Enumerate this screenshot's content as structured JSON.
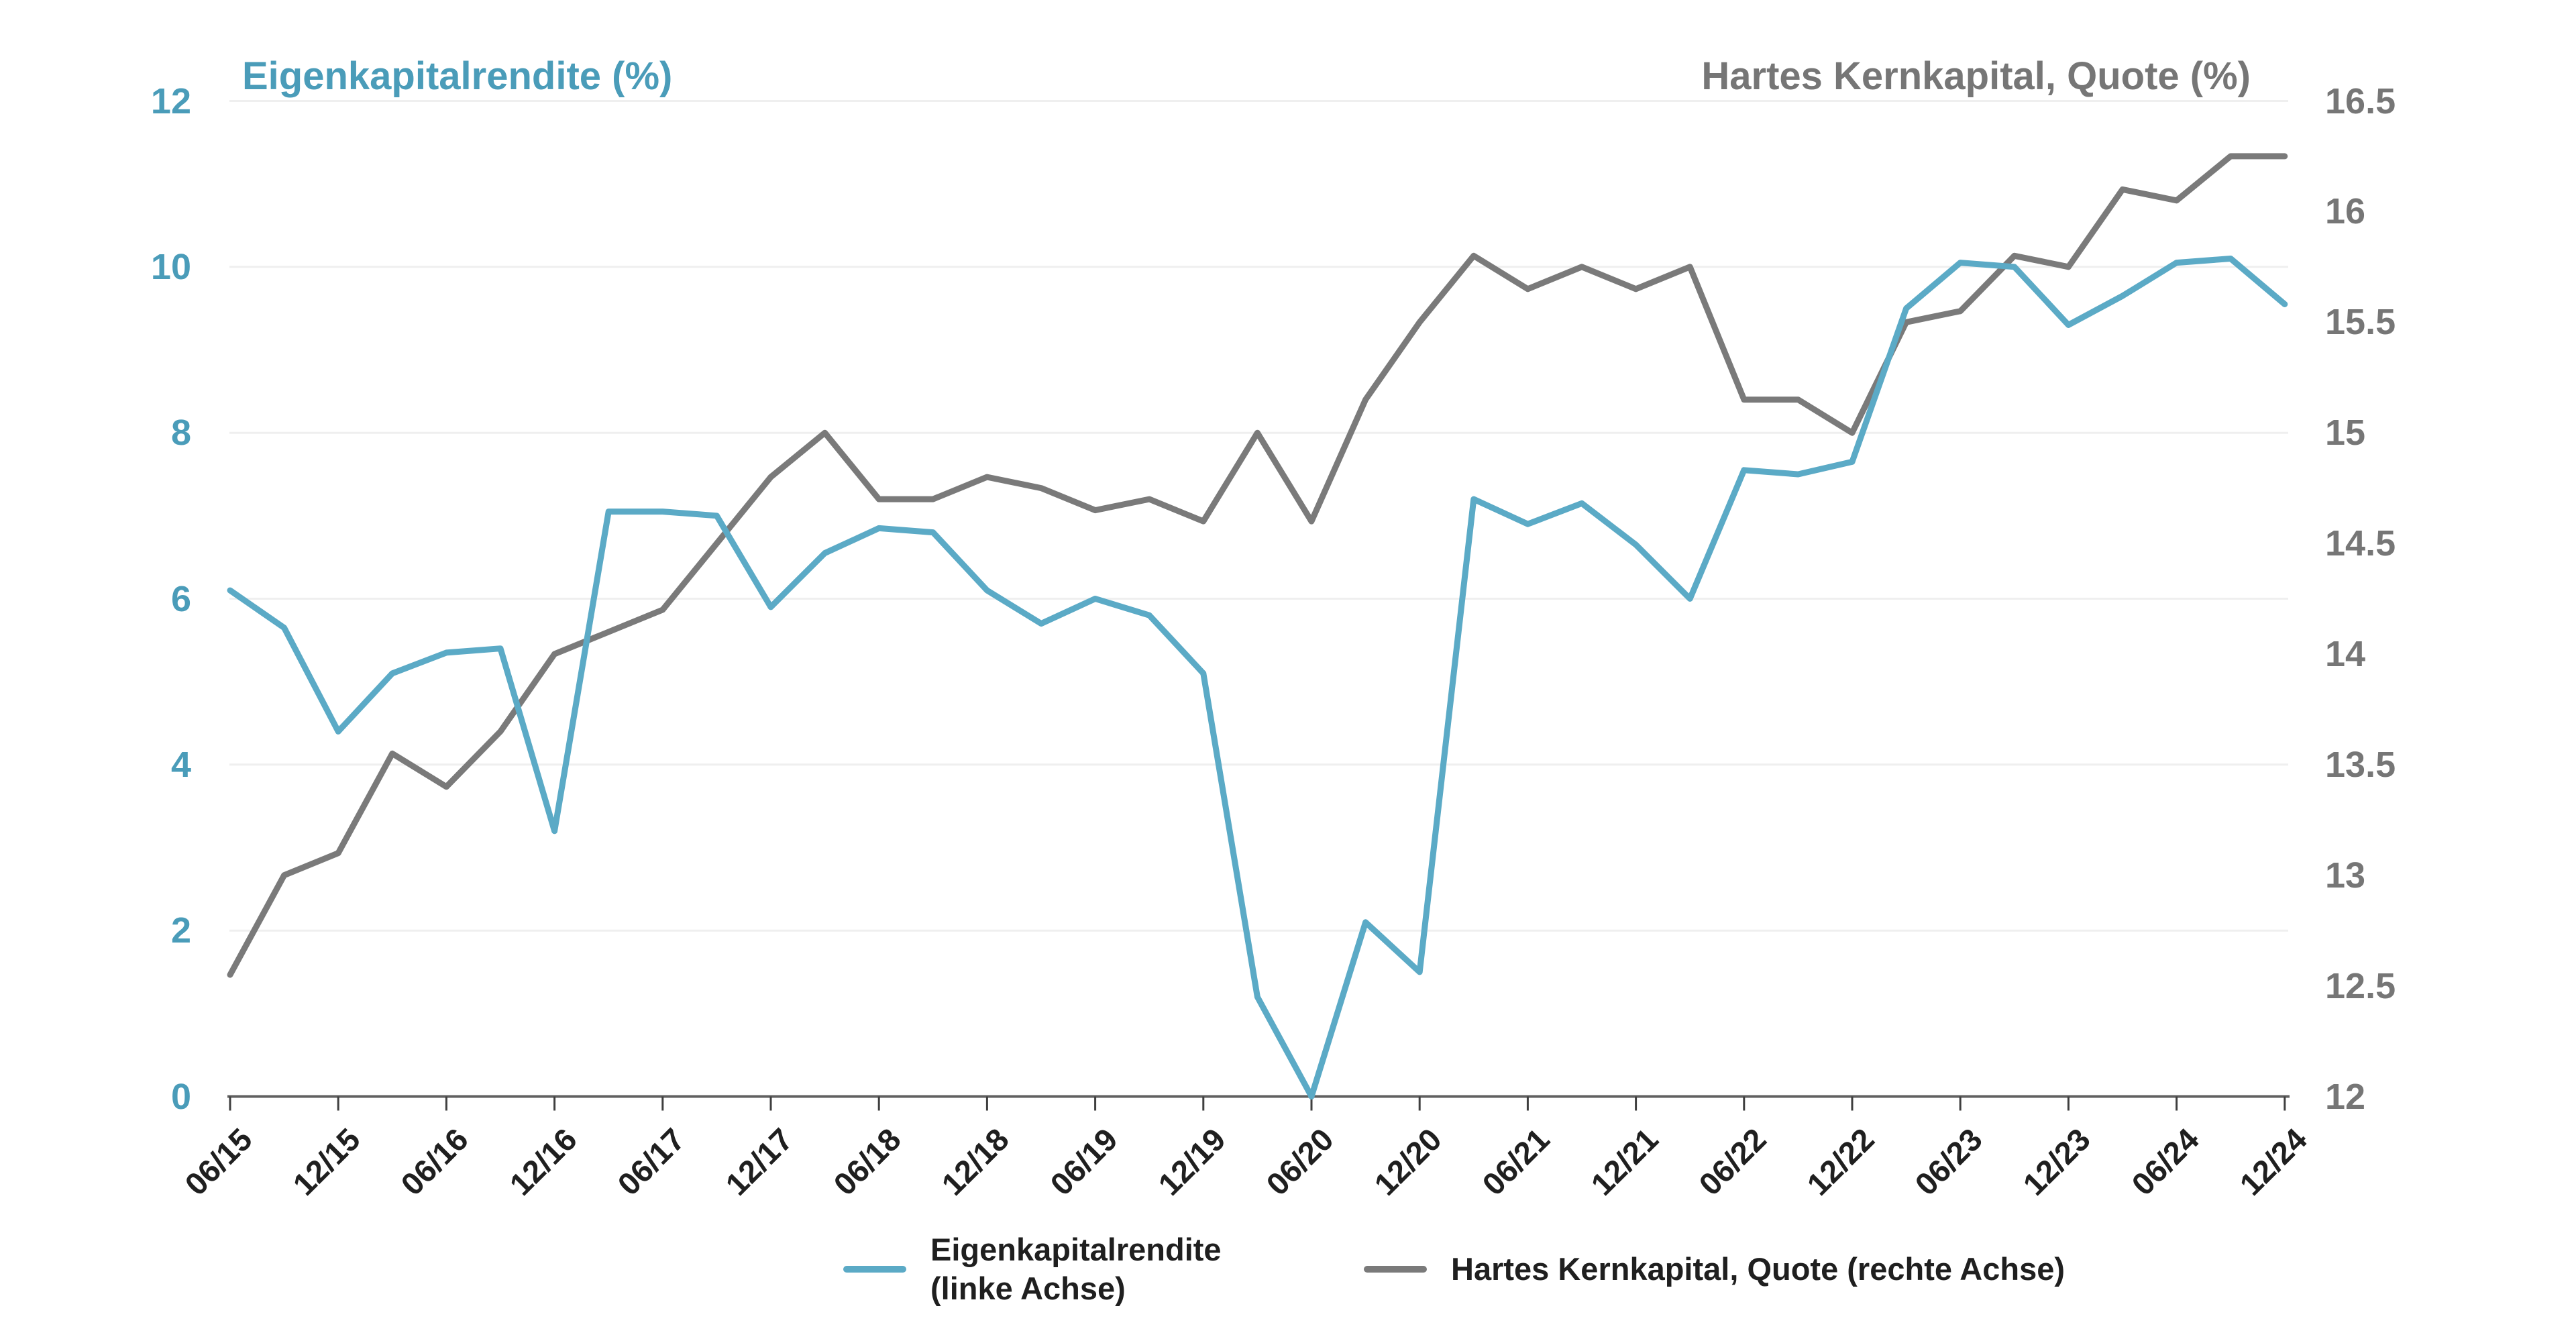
{
  "colors": {
    "background": "#ffffff",
    "roe_line": "#5BAAC6",
    "cet1_line": "#7A7A7A",
    "teal_text": "#4A9CB9",
    "gray_text": "#767676",
    "dark_text": "#1f1f1f",
    "gridline": "#efefef",
    "axis_line": "#606060",
    "tick_mark": "#3f3f3f"
  },
  "titles": {
    "left_axis_title": "Eigenkapitalrendite (%)",
    "right_axis_title": "Hartes Kernkapital, Quote (%)"
  },
  "legend": {
    "position": "bottom",
    "items": [
      {
        "label_line1": "Eigenkapitalrendite",
        "label_line2": "(linke Achse)",
        "series": "roe"
      },
      {
        "label_line1": "Hartes Kernkapital, Quote (rechte Achse)",
        "label_line2": "",
        "series": "cet1"
      }
    ]
  },
  "chart_data": {
    "type": "line",
    "title": "",
    "xlabel": "",
    "ylabel_left": "Eigenkapitalrendite (%)",
    "ylabel_right": "Hartes Kernkapital, Quote (%)",
    "grid": "horizontal gridlines at left-axis ticks, very light gray",
    "legend_position": "bottom center",
    "x_quarters": [
      "06/15",
      "09/15",
      "12/15",
      "03/16",
      "06/16",
      "09/16",
      "12/16",
      "03/17",
      "06/17",
      "09/17",
      "12/17",
      "03/18",
      "06/18",
      "09/18",
      "12/18",
      "03/19",
      "06/19",
      "09/19",
      "12/19",
      "03/20",
      "06/20",
      "09/20",
      "12/20",
      "03/21",
      "06/21",
      "09/21",
      "12/21",
      "03/22",
      "06/22",
      "09/22",
      "12/22",
      "03/23",
      "06/23",
      "09/23",
      "12/23",
      "03/24",
      "06/24",
      "09/24",
      "12/24"
    ],
    "x_axis_tick_labels": [
      "06/15",
      "12/15",
      "06/16",
      "12/16",
      "06/17",
      "12/17",
      "06/18",
      "12/18",
      "06/19",
      "12/19",
      "06/20",
      "12/20",
      "06/21",
      "12/21",
      "06/22",
      "12/22",
      "06/23",
      "12/23",
      "06/24",
      "12/24"
    ],
    "left_axis": {
      "min": 0,
      "max": 12,
      "tick_step": 2,
      "tick_labels": [
        "12",
        "10",
        "8",
        "6",
        "4",
        "2",
        "0"
      ],
      "tick_values": [
        12,
        10,
        8,
        6,
        4,
        2,
        0
      ]
    },
    "right_axis": {
      "min": 12,
      "max": 16.5,
      "tick_step": 0.5,
      "tick_labels": [
        "16.5",
        "16",
        "15.5",
        "15",
        "14.5",
        "14",
        "13.5",
        "13",
        "12.5",
        "12"
      ],
      "tick_values": [
        16.5,
        16,
        15.5,
        15,
        14.5,
        14,
        13.5,
        13,
        12.5,
        12
      ]
    },
    "series": [
      {
        "name": "Eigenkapitalrendite (linke Achse)",
        "axis": "left",
        "color": "#5BAAC6",
        "values": [
          6.1,
          5.65,
          4.4,
          5.1,
          5.35,
          5.4,
          3.2,
          7.05,
          7.05,
          7.0,
          5.9,
          6.55,
          6.85,
          6.8,
          6.1,
          5.7,
          6.0,
          5.8,
          5.1,
          1.2,
          0.0,
          2.1,
          1.5,
          7.2,
          6.9,
          7.15,
          6.65,
          6.0,
          7.55,
          7.5,
          7.65,
          9.5,
          10.05,
          10.0,
          9.3,
          9.65,
          10.05,
          10.1,
          9.55
        ]
      },
      {
        "name": "Hartes Kernkapital, Quote (rechte Achse)",
        "axis": "right",
        "color": "#7A7A7A",
        "values": [
          12.55,
          13.0,
          13.1,
          13.55,
          13.4,
          13.65,
          14.0,
          14.1,
          14.2,
          14.5,
          14.8,
          15.0,
          14.7,
          14.7,
          14.8,
          14.75,
          14.65,
          14.7,
          14.6,
          15.0,
          14.6,
          15.15,
          15.5,
          15.8,
          15.65,
          15.75,
          15.65,
          15.75,
          15.15,
          15.15,
          15.0,
          15.5,
          15.55,
          15.8,
          15.75,
          16.1,
          16.05,
          16.25,
          16.25
        ]
      }
    ]
  }
}
